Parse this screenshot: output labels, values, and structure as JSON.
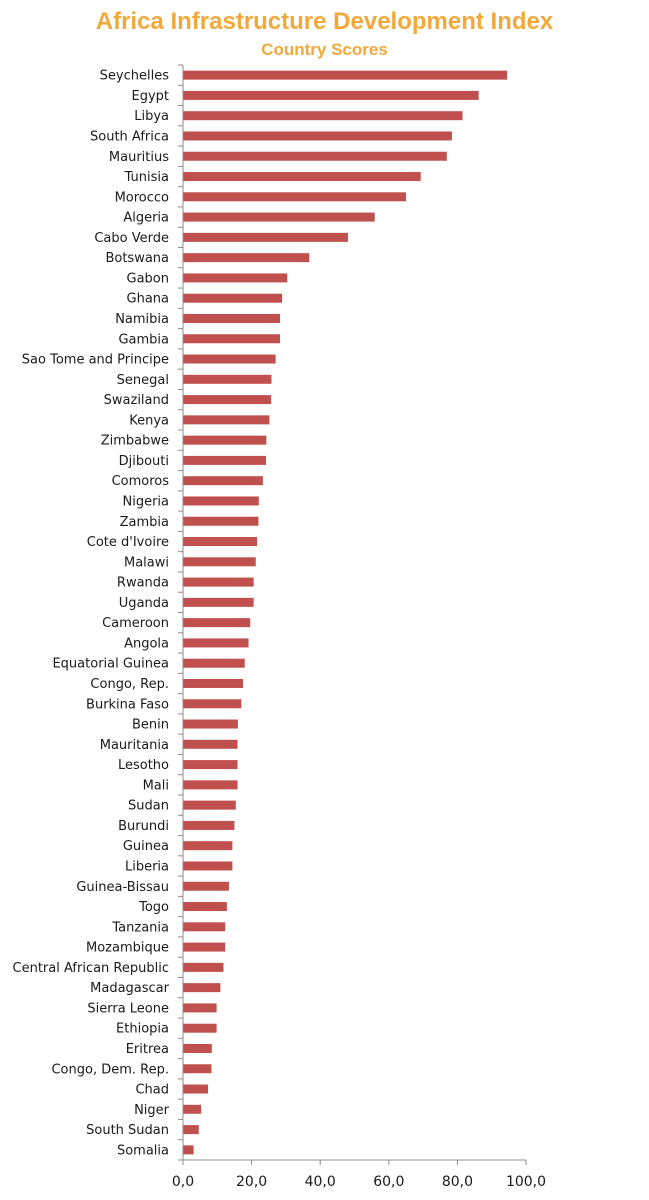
{
  "chart_data": {
    "type": "bar",
    "orientation": "horizontal",
    "title": "Africa Infrastructure Development Index",
    "subtitle": "Country Scores",
    "xlabel": "",
    "ylabel": "",
    "xlim": [
      0,
      100
    ],
    "xticks": [
      "0,0",
      "20,0",
      "40,0",
      "60,0",
      "80,0",
      "100,0"
    ],
    "grid": false,
    "legend": "none",
    "bar_color": "#c0504d",
    "title_color": "#f2a93b",
    "categories": [
      "Seychelles",
      "Egypt",
      "Libya",
      "South Africa",
      "Mauritius",
      "Tunisia",
      "Morocco",
      "Algeria",
      "Cabo Verde",
      "Botswana",
      "Gabon",
      "Ghana",
      "Namibia",
      "Gambia",
      "Sao Tome and Principe",
      "Senegal",
      "Swaziland",
      "Kenya",
      "Zimbabwe",
      "Djibouti",
      "Comoros",
      "Nigeria",
      "Zambia",
      "Cote d'Ivoire",
      "Malawi",
      "Rwanda",
      "Uganda",
      "Cameroon",
      "Angola",
      "Equatorial Guinea",
      "Congo, Rep.",
      "Burkina Faso",
      "Benin",
      "Mauritania",
      "Lesotho",
      "Mali",
      "Sudan",
      "Burundi",
      "Guinea",
      "Liberia",
      "Guinea-Bissau",
      "Togo",
      "Tanzania",
      "Mozambique",
      "Central African Republic",
      "Madagascar",
      "Sierra Leone",
      "Ethiopia",
      "Eritrea",
      "Congo, Dem. Rep.",
      "Chad",
      "Niger",
      "South Sudan",
      "Somalia"
    ],
    "values": [
      94.5,
      86.2,
      81.5,
      78.4,
      76.9,
      69.3,
      65.0,
      55.9,
      48.1,
      36.8,
      30.4,
      28.9,
      28.3,
      28.3,
      27.0,
      25.8,
      25.7,
      25.2,
      24.3,
      24.2,
      23.3,
      22.1,
      22.0,
      21.6,
      21.2,
      20.6,
      20.6,
      19.6,
      19.1,
      18.0,
      17.5,
      17.0,
      16.0,
      15.9,
      15.9,
      15.9,
      15.4,
      15.0,
      14.4,
      14.4,
      13.4,
      12.8,
      12.3,
      12.3,
      11.8,
      10.9,
      9.8,
      9.8,
      8.4,
      8.3,
      7.3,
      5.3,
      4.6,
      3.1
    ]
  }
}
